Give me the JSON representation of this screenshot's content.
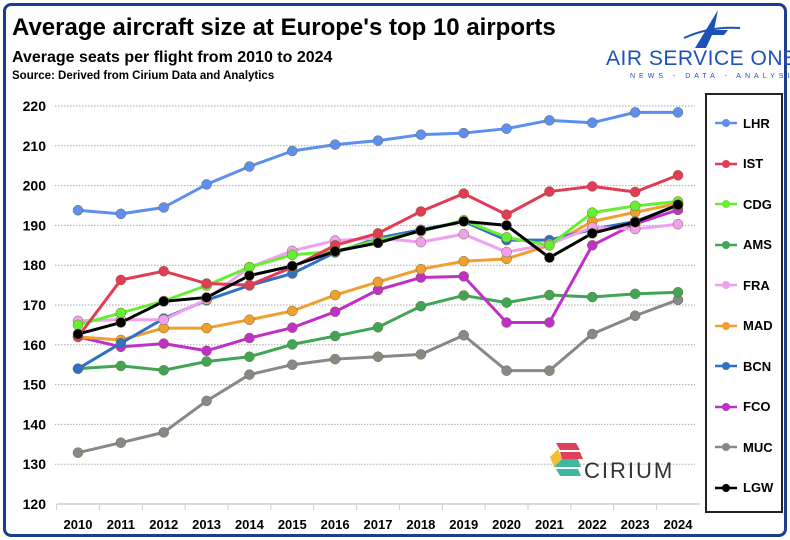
{
  "header": {
    "title": "Average aircraft size at Europe's top 10 airports",
    "subtitle": "Average seats per flight from 2010 to 2024",
    "source": "Source: Derived from Cirium Data and Analytics"
  },
  "branding": {
    "name": "AIR SERVICE ONE",
    "tagline": "NEWS - DATA - ANALYSIS",
    "partner_logo": "CIRIUM"
  },
  "chart_data": {
    "type": "line",
    "title": "Average aircraft size at Europe's top 10 airports",
    "xlabel": "",
    "ylabel": "",
    "x": [
      "2010",
      "2011",
      "2012",
      "2013",
      "2014",
      "2015",
      "2016",
      "2017",
      "2018",
      "2019",
      "2020",
      "2021",
      "2022",
      "2023",
      "2024"
    ],
    "ylim": [
      120,
      220
    ],
    "yticks": [
      120,
      130,
      140,
      150,
      160,
      170,
      180,
      190,
      200,
      210,
      220
    ],
    "grid": true,
    "legend_position": "right",
    "series": [
      {
        "name": "LHR",
        "color": "#5b8ff0",
        "values": [
          193.8,
          192.9,
          194.5,
          200.3,
          204.8,
          208.7,
          210.3,
          211.3,
          212.8,
          213.2,
          214.3,
          216.4,
          215.8,
          218.4,
          218.4
        ]
      },
      {
        "name": "IST",
        "color": "#e23b55",
        "values": [
          162.0,
          176.3,
          178.5,
          175.4,
          175.0,
          179.5,
          185.0,
          188.0,
          193.5,
          198.0,
          192.7,
          198.5,
          199.8,
          198.4,
          202.6
        ]
      },
      {
        "name": "CDG",
        "color": "#66ee33",
        "values": [
          165.0,
          168.0,
          171.0,
          174.9,
          179.5,
          182.6,
          183.5,
          186.3,
          188.5,
          191.3,
          187.0,
          185.0,
          193.2,
          194.9,
          196.0
        ]
      },
      {
        "name": "AMS",
        "color": "#3fa655",
        "values": [
          154.0,
          154.7,
          153.6,
          155.8,
          157.0,
          160.1,
          162.2,
          164.4,
          169.7,
          172.4,
          170.6,
          172.5,
          172.0,
          172.8,
          173.2
        ]
      },
      {
        "name": "FRA",
        "color": "#f0a0f0",
        "values": [
          166.0,
          166.3,
          166.3,
          171.4,
          179.5,
          183.6,
          186.2,
          186.8,
          185.8,
          187.8,
          183.3,
          185.3,
          189.5,
          189.1,
          190.3
        ]
      },
      {
        "name": "MAD",
        "color": "#f0a030",
        "values": [
          162.0,
          161.2,
          164.2,
          164.2,
          166.3,
          168.5,
          172.5,
          175.8,
          179.0,
          181.0,
          181.6,
          185.0,
          191.0,
          193.3,
          195.5
        ]
      },
      {
        "name": "BCN",
        "color": "#3070c8",
        "values": [
          154.0,
          160.4,
          166.6,
          171.2,
          174.9,
          177.9,
          183.2,
          186.8,
          188.9,
          191.0,
          186.3,
          186.3,
          189.0,
          191.0,
          195.0
        ]
      },
      {
        "name": "FCO",
        "color": "#c030c8",
        "values": [
          162.0,
          159.5,
          160.3,
          158.5,
          161.7,
          164.3,
          168.3,
          173.8,
          176.9,
          177.2,
          165.6,
          165.6,
          185.0,
          190.4,
          193.9
        ]
      },
      {
        "name": "MUC",
        "color": "#888888",
        "values": [
          132.9,
          135.4,
          138.0,
          145.9,
          152.5,
          155.0,
          156.4,
          157.0,
          157.6,
          162.4,
          153.5,
          153.5,
          162.7,
          167.3,
          171.3
        ]
      },
      {
        "name": "LGW",
        "color": "#000000",
        "values": [
          162.7,
          165.6,
          170.9,
          171.9,
          177.4,
          179.8,
          183.5,
          185.6,
          188.7,
          191.0,
          190.0,
          181.9,
          188.0,
          190.8,
          195.2
        ]
      }
    ]
  }
}
